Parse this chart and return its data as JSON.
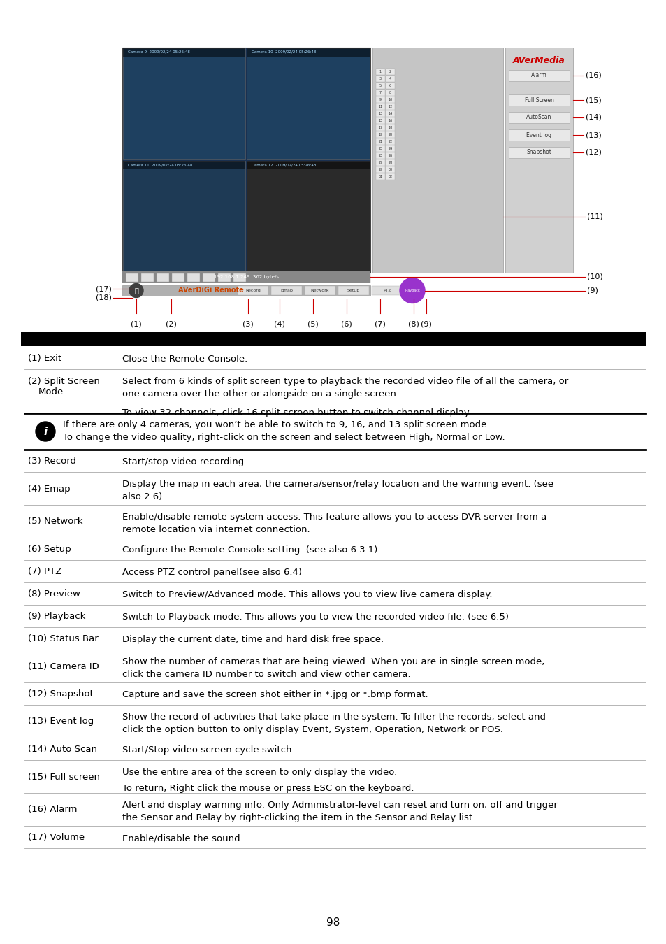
{
  "page_num": "98",
  "bg_color": "#ffffff",
  "table_rows": [
    {
      "label": "(1) Exit",
      "desc": "Close the Remote Console.",
      "extra": []
    },
    {
      "label": "(2) Split Screen",
      "label2": "    Mode",
      "desc": "Select from 6 kinds of split screen type to playback the recorded video file of all the camera, or\none camera over the other or alongside on a single screen.",
      "extra": [
        "To view 32 channels, click 16 split screen button to switch channel display."
      ]
    },
    {
      "label": "info_box",
      "desc": "If there are only 4 cameras, you won’t be able to switch to 9, 16, and 13 split screen mode.\nTo change the video quality, right-click on the screen and select between High, Normal or Low.",
      "extra": []
    },
    {
      "label": "(3) Record",
      "desc": "Start/stop video recording.",
      "extra": []
    },
    {
      "label": "(4) Emap",
      "desc": "Display the map in each area, the camera/sensor/relay location and the warning event. (see\nalso 2.6)",
      "extra": [],
      "link": "2.6"
    },
    {
      "label": "(5) Network",
      "desc": "Enable/disable remote system access. This feature allows you to access DVR server from a\nremote location via internet connection.",
      "extra": []
    },
    {
      "label": "(6) Setup",
      "desc": "Configure the Remote Console setting. (see also 6.3.1)",
      "extra": [],
      "link": "6.3.1"
    },
    {
      "label": "(7) PTZ",
      "desc": "Access PTZ control panel(see also 6.4)",
      "extra": [],
      "link": "6.4"
    },
    {
      "label": "(8) Preview",
      "desc": "Switch to Preview/Advanced mode. This allows you to view live camera display.",
      "extra": []
    },
    {
      "label": "(9) Playback",
      "desc": "Switch to Playback mode. This allows you to view the recorded video file. (see 6.5)",
      "extra": [],
      "link": "6.5"
    },
    {
      "label": "(10) Status Bar",
      "desc": "Display the current date, time and hard disk free space.",
      "extra": []
    },
    {
      "label": "(11) Camera ID",
      "desc": "Show the number of cameras that are being viewed. When you are in single screen mode,\nclick the camera ID number to switch and view other camera.",
      "extra": []
    },
    {
      "label": "(12) Snapshot",
      "desc": "Capture and save the screen shot either in *.jpg or *.bmp format.",
      "extra": []
    },
    {
      "label": "(13) Event log",
      "desc": "Show the record of activities that take place in the system. To filter the records, select and\nclick the option button to only display Event, System, Operation, Network or POS.",
      "extra": []
    },
    {
      "label": "(14) Auto Scan",
      "desc": "Start/Stop video screen cycle switch",
      "extra": []
    },
    {
      "label": "(15) Full screen",
      "desc": "Use the entire area of the screen to only display the video.",
      "extra": [
        "To return, Right click the mouse or press ESC on the keyboard."
      ]
    },
    {
      "label": "(16) Alarm",
      "desc": "Alert and display warning info. Only Administrator-level can reset and turn on, off and trigger\nthe Sensor and Relay by right-clicking the item in the Sensor and Relay list.",
      "extra": []
    },
    {
      "label": "(17) Volume",
      "desc": "Enable/disable the sound.",
      "extra": []
    }
  ]
}
